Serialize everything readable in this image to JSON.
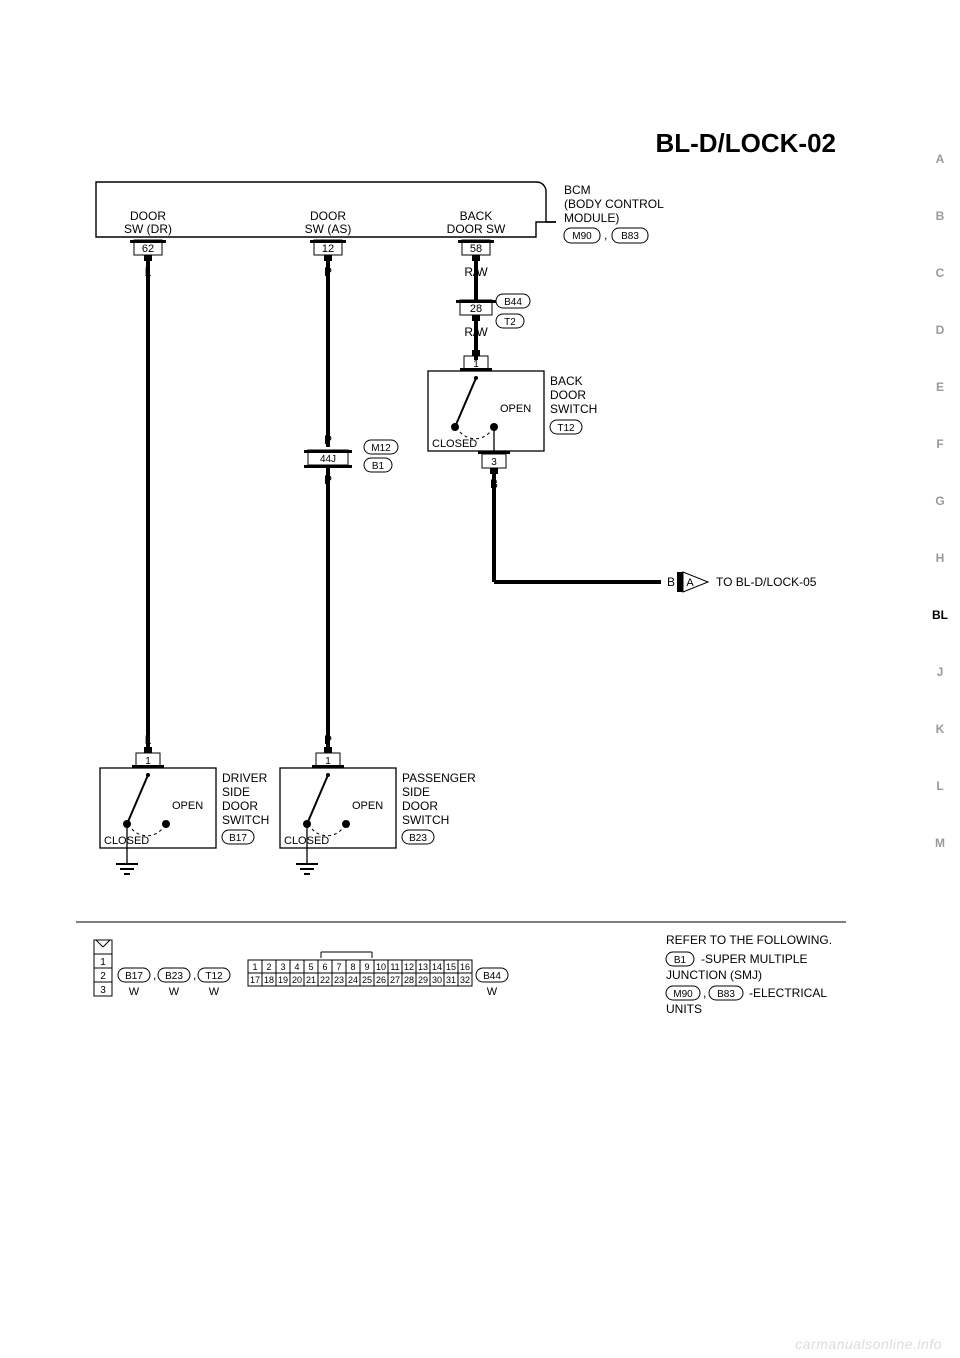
{
  "colors": {
    "paper": "#ffffff",
    "ink": "#000000",
    "faint": "#9a9a9a",
    "watermark": "#dcdcdc"
  },
  "title": "BL-D/LOCK-02",
  "bcm": {
    "name": "BCM",
    "desc1": "(BODY CONTROL",
    "desc2": "MODULE)",
    "conn1": "M90",
    "conn2": "B83"
  },
  "terminals": {
    "dr": {
      "label1": "DOOR",
      "label2": "SW (DR)",
      "pin": "62",
      "wire": "L"
    },
    "as": {
      "label1": "DOOR",
      "label2": "SW (AS)",
      "pin": "12",
      "wire": "P"
    },
    "bk": {
      "label1": "BACK",
      "label2": "DOOR SW",
      "pin": "58",
      "wire": "R/W"
    }
  },
  "mid_conn": {
    "b44": "B44",
    "pin": "28",
    "t2": "T2",
    "wire": "R/W"
  },
  "as_junction": {
    "wire_top": "P",
    "conn_m": "M12",
    "pin": "44J",
    "conn_b": "B1",
    "wire_bot": "P"
  },
  "switches": {
    "driver": {
      "line1": "DRIVER",
      "line2": "SIDE",
      "line3": "DOOR",
      "line4": "SWITCH",
      "conn": "B17",
      "open": "OPEN",
      "closed": "CLOSED",
      "pin": "1",
      "wire": "L"
    },
    "passenger": {
      "line1": "PASSENGER",
      "line2": "SIDE",
      "line3": "DOOR",
      "line4": "SWITCH",
      "conn": "B23",
      "open": "OPEN",
      "closed": "CLOSED",
      "pin": "1",
      "wire": "P"
    },
    "back": {
      "line1": "BACK",
      "line2": "DOOR",
      "line3": "SWITCH",
      "conn": "T12",
      "open": "OPEN",
      "closed": "CLOSED",
      "pin_top": "1",
      "pin_bot": "3",
      "wire_bot": "B"
    }
  },
  "branch": {
    "wire": "B",
    "arrow": "A",
    "to": "TO BL-D/LOCK-05"
  },
  "footer": {
    "vert": {
      "1": "1",
      "2": "2",
      "3": "3"
    },
    "vert_conns": {
      "a": "B17",
      "b": "B23",
      "c": "T12",
      "color": "W"
    },
    "grid": {
      "row1": [
        "1",
        "2",
        "3",
        "4",
        "5",
        "6",
        "7",
        "8",
        "9",
        "10",
        "11",
        "12",
        "13",
        "14",
        "15",
        "16"
      ],
      "row2": [
        "17",
        "18",
        "19",
        "20",
        "21",
        "22",
        "23",
        "24",
        "25",
        "26",
        "27",
        "28",
        "29",
        "30",
        "31",
        "32"
      ],
      "conn": "B44",
      "color": "W"
    },
    "refer": {
      "title": "REFER TO THE FOLLOWING.",
      "b1": "B1",
      "b1_txt": "-SUPER MULTIPLE",
      "b1_txt2": "JUNCTION (SMJ)",
      "m90": "M90",
      "b83": "B83",
      "elec": "-ELECTRICAL",
      "elec2": "UNITS"
    }
  },
  "tabs": [
    "A",
    "B",
    "C",
    "D",
    "E",
    "F",
    "G",
    "H",
    "BL",
    "J",
    "K",
    "L",
    "M"
  ],
  "active_tab": "BL",
  "watermark": "carmanualsonline.info"
}
